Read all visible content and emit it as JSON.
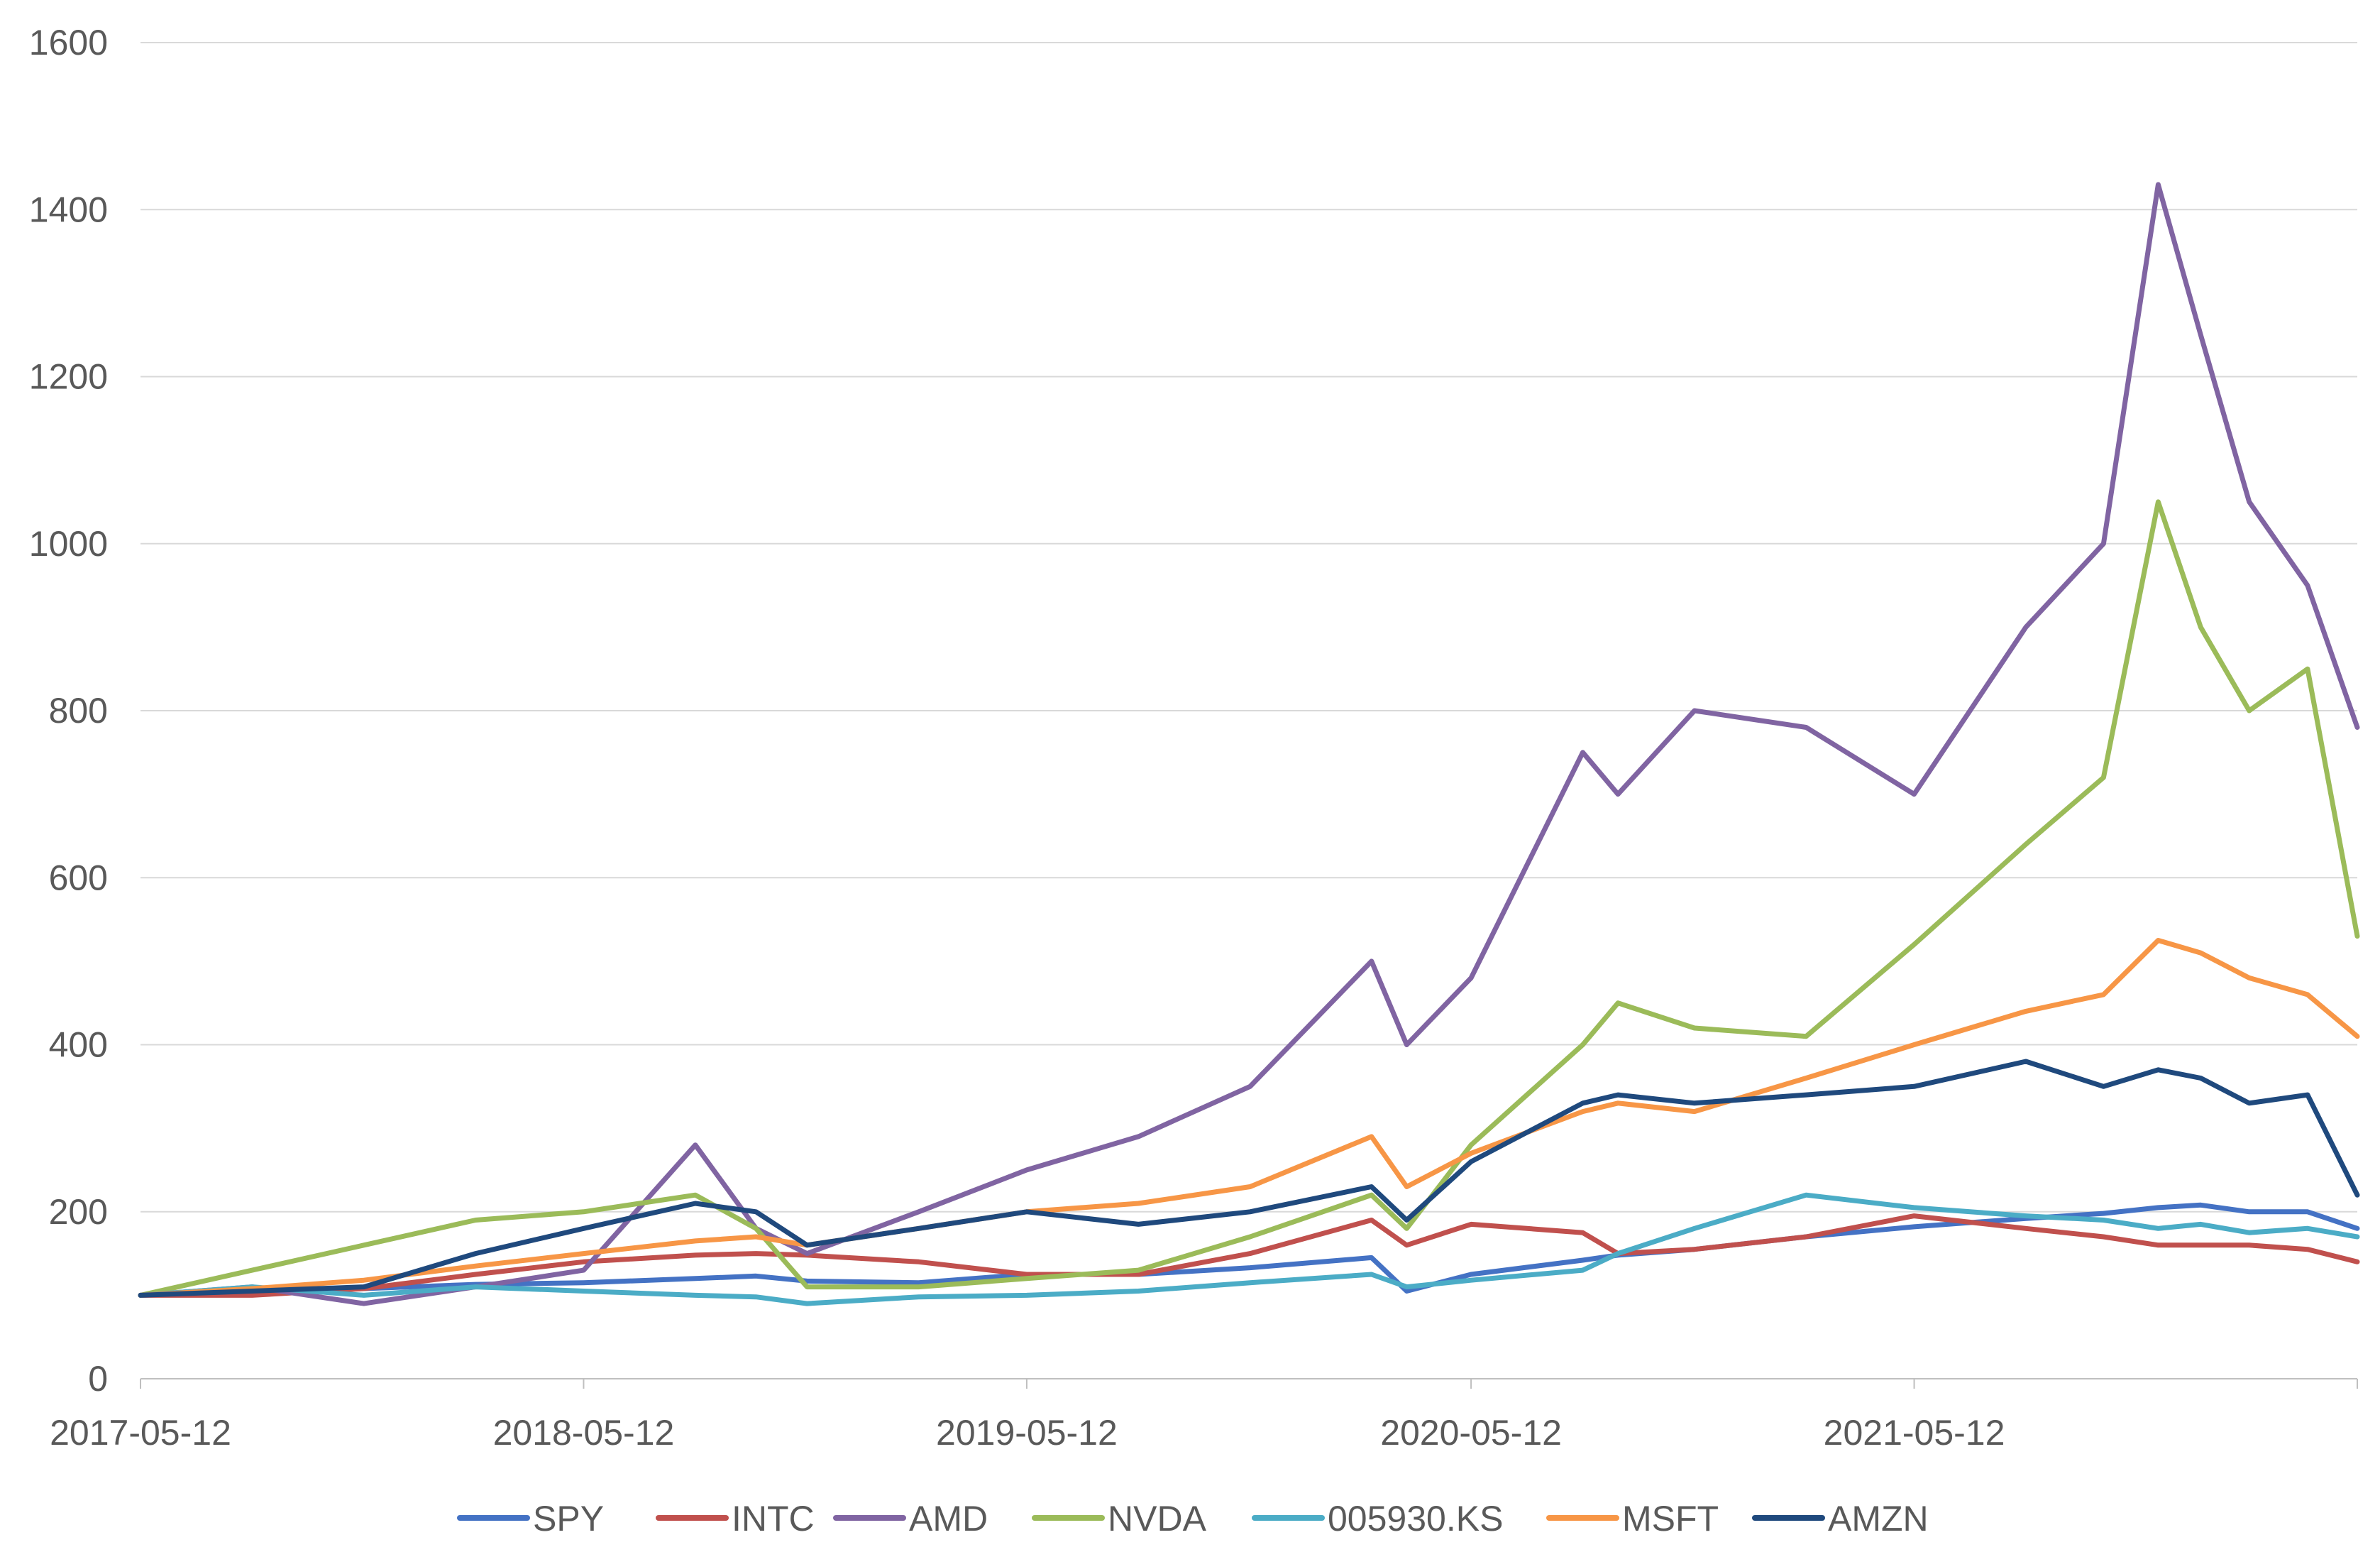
{
  "chart_data": {
    "type": "line",
    "title": "",
    "xlabel": "",
    "ylabel": "",
    "x_start": "2017-05-12",
    "x_end": "2022-05-12",
    "x_tick_labels": [
      "2017-05-12",
      "2018-05-12",
      "2019-05-12",
      "2020-05-12",
      "2021-05-12"
    ],
    "ylim": [
      0,
      1600
    ],
    "y_tick_labels": [
      "0",
      "200",
      "400",
      "600",
      "800",
      "1000",
      "1200",
      "1400",
      "1600"
    ],
    "grid": "horizontal",
    "legend_position": "bottom",
    "dates": [
      "2017-05-12",
      "2017-08-12",
      "2017-11-12",
      "2018-02-12",
      "2018-05-12",
      "2018-08-12",
      "2018-10-01",
      "2018-11-12",
      "2019-02-12",
      "2019-05-12",
      "2019-08-12",
      "2019-11-12",
      "2020-02-20",
      "2020-03-20",
      "2020-05-12",
      "2020-08-12",
      "2020-09-10",
      "2020-11-12",
      "2021-02-12",
      "2021-05-12",
      "2021-08-12",
      "2021-10-15",
      "2021-11-29",
      "2022-01-03",
      "2022-02-12",
      "2022-04-01",
      "2022-05-12"
    ],
    "series": [
      {
        "name": "SPY",
        "color": "#4472C4",
        "values": [
          100,
          103,
          108,
          113,
          115,
          120,
          123,
          117,
          115,
          125,
          125,
          133,
          145,
          105,
          125,
          142,
          148,
          155,
          170,
          182,
          192,
          198,
          205,
          208,
          200,
          200,
          180
        ]
      },
      {
        "name": "INTC",
        "color": "#C0504D",
        "values": [
          100,
          100,
          108,
          125,
          140,
          148,
          150,
          148,
          140,
          125,
          125,
          150,
          190,
          160,
          185,
          175,
          150,
          155,
          170,
          195,
          180,
          170,
          160,
          160,
          160,
          155,
          140
        ]
      },
      {
        "name": "AMD",
        "color": "#8064A2",
        "values": [
          100,
          110,
          90,
          110,
          130,
          280,
          180,
          150,
          200,
          250,
          290,
          350,
          500,
          400,
          480,
          750,
          700,
          800,
          780,
          700,
          900,
          1000,
          1430,
          1250,
          1050,
          950,
          780
        ]
      },
      {
        "name": "NVDA",
        "color": "#9BBB59",
        "values": [
          100,
          130,
          160,
          190,
          200,
          220,
          180,
          110,
          110,
          120,
          130,
          170,
          220,
          180,
          280,
          400,
          450,
          420,
          410,
          520,
          640,
          720,
          1050,
          900,
          800,
          850,
          530
        ]
      },
      {
        "name": "005930.KS",
        "color": "#4BACC6",
        "values": [
          100,
          110,
          100,
          110,
          105,
          100,
          98,
          90,
          98,
          100,
          105,
          115,
          125,
          110,
          118,
          130,
          150,
          180,
          220,
          205,
          195,
          190,
          180,
          185,
          175,
          180,
          170
        ]
      },
      {
        "name": "MSFT",
        "color": "#F79646",
        "values": [
          100,
          108,
          118,
          135,
          150,
          165,
          170,
          160,
          180,
          200,
          210,
          230,
          290,
          230,
          270,
          320,
          330,
          320,
          360,
          400,
          440,
          460,
          525,
          510,
          480,
          460,
          410
        ]
      },
      {
        "name": "AMZN",
        "color": "#1F497D",
        "values": [
          100,
          105,
          110,
          150,
          180,
          210,
          200,
          160,
          180,
          200,
          185,
          200,
          230,
          190,
          260,
          330,
          340,
          330,
          340,
          350,
          380,
          350,
          370,
          360,
          330,
          340,
          220
        ]
      }
    ]
  }
}
